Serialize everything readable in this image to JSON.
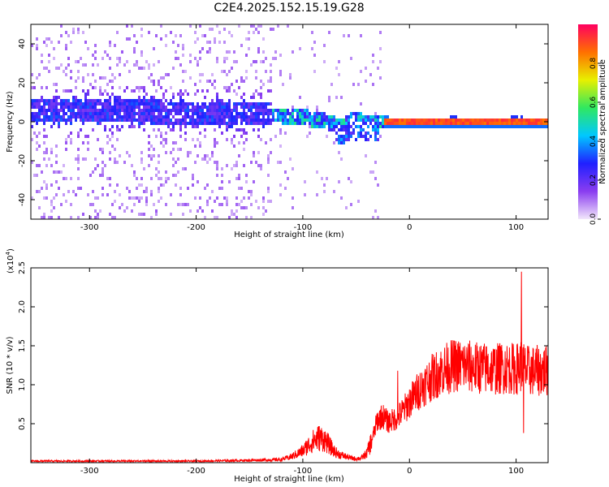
{
  "figure": {
    "title": "C2E4.2025.152.15.19.G28"
  },
  "chart_data": [
    {
      "type": "heatmap",
      "title": "C2E4.2025.152.15.19.G28",
      "xlabel": "Height of straight line (km)",
      "ylabel": "Frequency (Hz)",
      "xlim": [
        -355,
        130
      ],
      "ylim": [
        -50,
        50
      ],
      "x_ticks": [
        -300,
        -200,
        -100,
        0,
        100
      ],
      "x_tick_labels": [
        "-300",
        "-200",
        "-100",
        "0",
        "100"
      ],
      "y_ticks": [
        -40,
        -20,
        0,
        20,
        40
      ],
      "y_tick_labels": [
        "-40",
        "-20",
        "0",
        "20",
        "40"
      ],
      "colorbar": {
        "label": "Normalized spectral amplitude",
        "range": [
          0,
          1
        ],
        "ticks": [
          0.0,
          0.2,
          0.4,
          0.6,
          0.8
        ],
        "tick_labels": [
          "0.0",
          "0.2",
          "0.4",
          "0.6",
          "0.8"
        ],
        "colors": [
          "#f2e6fb",
          "#8a3df0",
          "#2020ff",
          "#00c8ff",
          "#30e860",
          "#e8f000",
          "#ff7000",
          "#ff0060"
        ]
      },
      "ridge": {
        "description_values": "dominant frequency (Hz) vs height (km)",
        "x": [
          -340,
          -300,
          -250,
          -200,
          -150,
          -120,
          -100,
          -80,
          -65,
          -55,
          -45,
          -30,
          -10,
          0,
          40,
          80,
          100,
          130
        ],
        "y": [
          6,
          6,
          6,
          5,
          5,
          4,
          3,
          1,
          -2,
          2,
          1,
          1,
          0.5,
          0.5,
          0.5,
          0.5,
          0.5,
          0.5
        ]
      },
      "grid": false
    },
    {
      "type": "line",
      "xlabel": "Height of straight line (km)",
      "ylabel": "SNR (10 * v/v)",
      "y_multiplier_label": "(x10",
      "y_multiplier_exp": "4",
      "y_multiplier_close": ")",
      "xlim": [
        -355,
        130
      ],
      "ylim": [
        0,
        2.5
      ],
      "x_ticks": [
        -300,
        -200,
        -100,
        0,
        100
      ],
      "x_tick_labels": [
        "-300",
        "-200",
        "-100",
        "0",
        "100"
      ],
      "y_ticks": [
        0.5,
        1.0,
        1.5,
        2.0,
        2.5
      ],
      "y_tick_labels": [
        "0.5",
        "1.0",
        "1.5",
        "2.0",
        "2.5"
      ],
      "line_color": "#ff0000",
      "grid": false,
      "series": [
        {
          "x": [
            -355,
            -300,
            -250,
            -200,
            -150,
            -120,
            -110,
            -100,
            -95,
            -90,
            -85,
            -80,
            -75,
            -70,
            -65,
            -60,
            -55,
            -50,
            -45,
            -40,
            -35,
            -30,
            -25,
            -20,
            -15,
            -10,
            -5,
            0,
            10,
            20,
            30,
            40,
            50,
            60,
            70,
            80,
            90,
            100,
            105,
            110,
            120,
            130
          ],
          "y": [
            0.02,
            0.02,
            0.02,
            0.02,
            0.03,
            0.04,
            0.08,
            0.15,
            0.22,
            0.28,
            0.32,
            0.3,
            0.22,
            0.14,
            0.1,
            0.08,
            0.06,
            0.05,
            0.06,
            0.12,
            0.3,
            0.55,
            0.6,
            0.52,
            0.55,
            0.6,
            0.68,
            0.78,
            0.95,
            1.08,
            1.18,
            1.24,
            1.25,
            1.22,
            1.21,
            1.2,
            1.22,
            1.2,
            1.25,
            1.18,
            1.18,
            1.18
          ]
        }
      ],
      "spikes": [
        {
          "x": -11,
          "y": 1.18
        },
        {
          "x": 105,
          "y": 2.45
        },
        {
          "x": 107,
          "y": 0.38
        }
      ]
    }
  ]
}
